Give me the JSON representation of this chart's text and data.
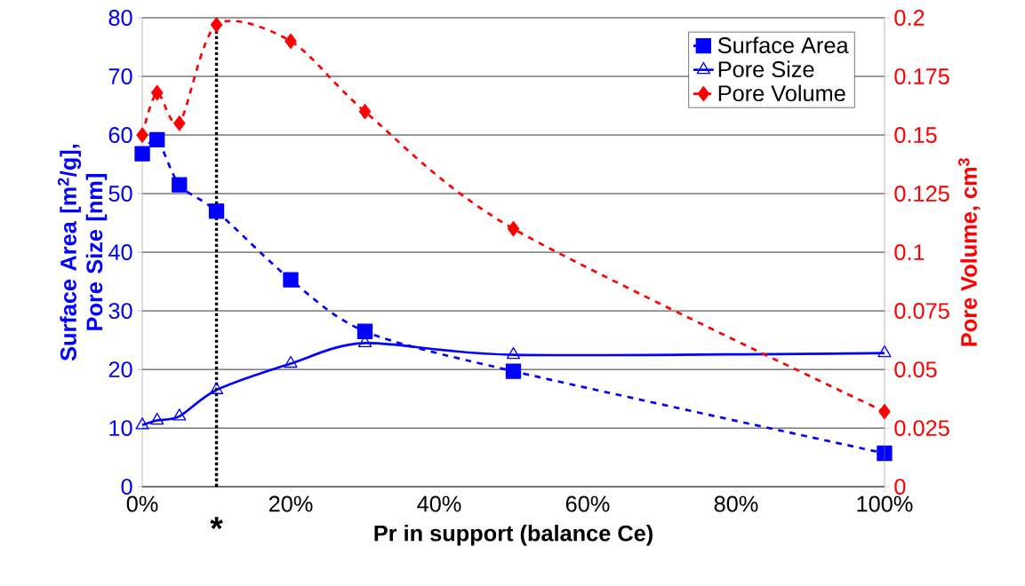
{
  "chart_data": {
    "type": "line",
    "xlabel": "Pr in support (balance Ce)",
    "ylabel": "Surface Area [m$^{2}$/g], Pore Size [nm]",
    "y2label": "Pore Volume, cm$^{3}$",
    "x": [
      0,
      2,
      5,
      10,
      20,
      30,
      50,
      100
    ],
    "series": [
      {
        "name": "Surface Area",
        "color": "#0000ff",
        "marker": "square",
        "line_style": "dashed",
        "values": [
          56.8,
          59.2,
          51.5,
          47,
          35.3,
          26.5,
          19.7,
          5.7
        ]
      },
      {
        "name": "Pore Size",
        "color": "#0000ff",
        "marker": "triangle",
        "line_style": "solid",
        "values": [
          10.5,
          11.3,
          12,
          16.5,
          21,
          24.5,
          22.5,
          22.8
        ]
      },
      {
        "name": "Pore Volume",
        "color": "#ff0000",
        "marker": "diamond",
        "line_style": "dashed",
        "axis": "y2",
        "values": [
          0.15,
          0.168,
          0.155,
          0.197,
          0.19,
          0.16,
          0.11,
          0.032
        ]
      }
    ],
    "xlim": [
      0,
      100
    ],
    "xticks": [
      {
        "value": 0,
        "label": "0%"
      },
      {
        "value": 20,
        "label": "20%"
      },
      {
        "value": 40,
        "label": "40%"
      },
      {
        "value": 60,
        "label": "60%"
      },
      {
        "value": 80,
        "label": "80%"
      },
      {
        "value": 100,
        "label": "100%"
      }
    ],
    "ylim": [
      0,
      80
    ],
    "yticks": [
      0,
      10,
      20,
      30,
      40,
      50,
      60,
      70,
      80
    ],
    "y2lim": [
      0,
      0.2
    ],
    "y2ticks": [
      0,
      0.025,
      0.05,
      0.075,
      0.1,
      0.125,
      0.15,
      0.175,
      0.2
    ],
    "ref_lines": [
      {
        "axis": "x",
        "value": 10,
        "label": "*",
        "color": "#000000",
        "line_style": "dotted"
      }
    ],
    "grid": "y",
    "legend": "top right"
  }
}
